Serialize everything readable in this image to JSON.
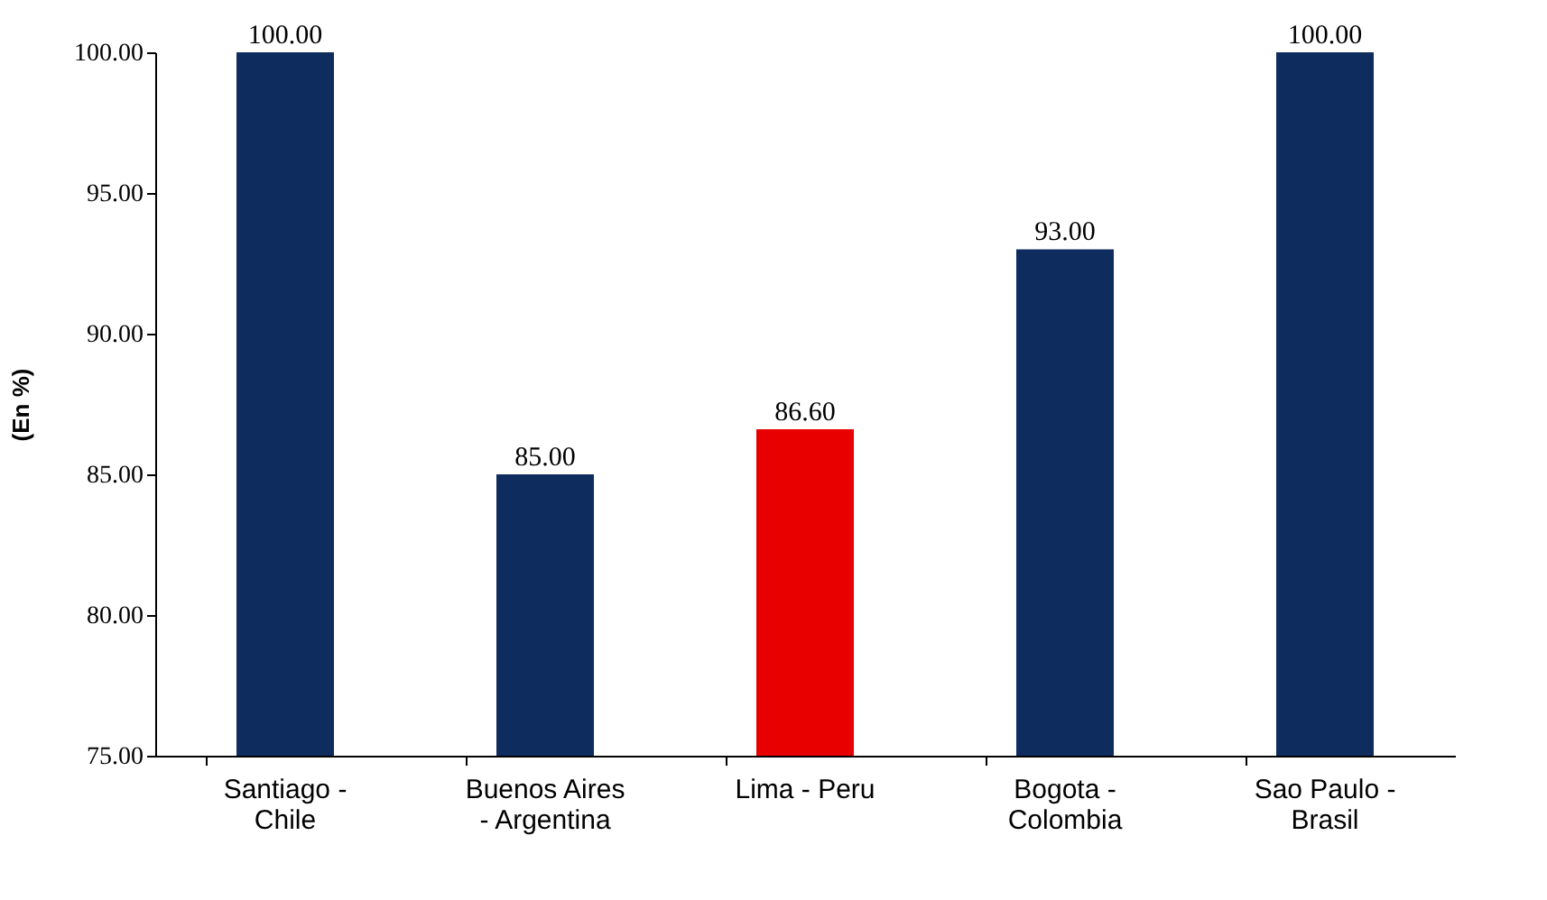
{
  "chart_data": {
    "type": "bar",
    "ylabel": "(En %)",
    "categories": [
      "Santiago - Chile",
      "Buenos Aires - Argentina",
      "Lima - Peru",
      "Bogota - Colombia",
      "Sao Paulo - Brasil"
    ],
    "values": [
      100,
      85,
      86.6,
      93,
      100
    ],
    "colors": [
      "#0f2c5e",
      "#0f2c5e",
      "#e80000",
      "#0f2c5e",
      "#0f2c5e"
    ],
    "value_labels": [
      "100.00",
      "85.00",
      "86.60",
      "93.00",
      "100.00"
    ],
    "ylim": [
      75,
      100
    ],
    "yticks": [
      {
        "value": 75,
        "label": "75.00"
      },
      {
        "value": 80,
        "label": "80.00"
      },
      {
        "value": 85,
        "label": "85.00"
      },
      {
        "value": 90,
        "label": "90.00"
      },
      {
        "value": 95,
        "label": "95.00"
      },
      {
        "value": 100,
        "label": "100.00"
      }
    ]
  }
}
